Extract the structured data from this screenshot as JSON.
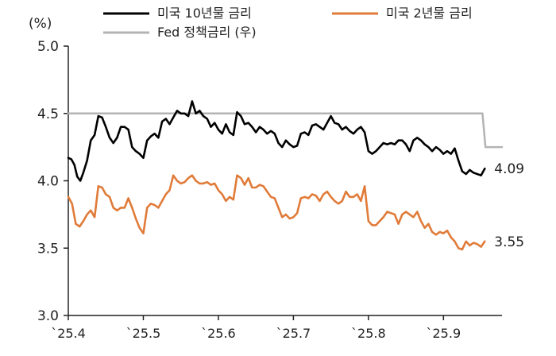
{
  "chart_data": {
    "type": "line",
    "title": "",
    "unit_label": "(%)",
    "ylim": [
      3.0,
      5.0
    ],
    "y_ticks": [
      "5.0",
      "4.5",
      "4.0",
      "3.5",
      "3.0"
    ],
    "x_ticks": [
      "`25.4",
      "`25.5",
      "`25.6",
      "`25.7",
      "`25.8",
      "`25.9"
    ],
    "x_tick_values": [
      2025.4,
      2025.5,
      2025.6,
      2025.7,
      2025.8,
      2025.9
    ],
    "xlim": [
      2025.4,
      2025.978
    ],
    "legend_placement": "top",
    "grid": false,
    "series": [
      {
        "key": "us10y",
        "name": "미국 10년물 금리",
        "color": "#000000",
        "end_label": "4.09",
        "points": [
          [
            2025.4,
            4.17
          ],
          [
            2025.404,
            4.16
          ],
          [
            2025.408,
            4.12
          ],
          [
            2025.412,
            4.03
          ],
          [
            2025.416,
            4.0
          ],
          [
            2025.42,
            4.06
          ],
          [
            2025.425,
            4.15
          ],
          [
            2025.43,
            4.3
          ],
          [
            2025.435,
            4.34
          ],
          [
            2025.44,
            4.48
          ],
          [
            2025.445,
            4.47
          ],
          [
            2025.45,
            4.4
          ],
          [
            2025.455,
            4.32
          ],
          [
            2025.46,
            4.28
          ],
          [
            2025.465,
            4.32
          ],
          [
            2025.47,
            4.4
          ],
          [
            2025.475,
            4.4
          ],
          [
            2025.48,
            4.38
          ],
          [
            2025.485,
            4.25
          ],
          [
            2025.49,
            4.22
          ],
          [
            2025.495,
            4.2
          ],
          [
            2025.5,
            4.17
          ],
          [
            2025.505,
            4.3
          ],
          [
            2025.51,
            4.33
          ],
          [
            2025.515,
            4.35
          ],
          [
            2025.52,
            4.32
          ],
          [
            2025.525,
            4.44
          ],
          [
            2025.53,
            4.46
          ],
          [
            2025.535,
            4.42
          ],
          [
            2025.54,
            4.47
          ],
          [
            2025.545,
            4.52
          ],
          [
            2025.55,
            4.5
          ],
          [
            2025.555,
            4.5
          ],
          [
            2025.56,
            4.48
          ],
          [
            2025.565,
            4.59
          ],
          [
            2025.57,
            4.5
          ],
          [
            2025.575,
            4.52
          ],
          [
            2025.58,
            4.48
          ],
          [
            2025.585,
            4.46
          ],
          [
            2025.59,
            4.4
          ],
          [
            2025.595,
            4.43
          ],
          [
            2025.6,
            4.38
          ],
          [
            2025.605,
            4.35
          ],
          [
            2025.61,
            4.42
          ],
          [
            2025.615,
            4.36
          ],
          [
            2025.62,
            4.34
          ],
          [
            2025.625,
            4.51
          ],
          [
            2025.63,
            4.48
          ],
          [
            2025.635,
            4.42
          ],
          [
            2025.64,
            4.43
          ],
          [
            2025.645,
            4.4
          ],
          [
            2025.65,
            4.36
          ],
          [
            2025.655,
            4.4
          ],
          [
            2025.66,
            4.38
          ],
          [
            2025.665,
            4.35
          ],
          [
            2025.67,
            4.37
          ],
          [
            2025.675,
            4.35
          ],
          [
            2025.68,
            4.28
          ],
          [
            2025.685,
            4.25
          ],
          [
            2025.69,
            4.3
          ],
          [
            2025.695,
            4.27
          ],
          [
            2025.7,
            4.25
          ],
          [
            2025.705,
            4.26
          ],
          [
            2025.71,
            4.35
          ],
          [
            2025.715,
            4.36
          ],
          [
            2025.72,
            4.34
          ],
          [
            2025.725,
            4.41
          ],
          [
            2025.73,
            4.42
          ],
          [
            2025.735,
            4.4
          ],
          [
            2025.74,
            4.38
          ],
          [
            2025.745,
            4.43
          ],
          [
            2025.75,
            4.48
          ],
          [
            2025.755,
            4.43
          ],
          [
            2025.76,
            4.42
          ],
          [
            2025.765,
            4.38
          ],
          [
            2025.77,
            4.4
          ],
          [
            2025.775,
            4.37
          ],
          [
            2025.78,
            4.35
          ],
          [
            2025.785,
            4.38
          ],
          [
            2025.79,
            4.4
          ],
          [
            2025.795,
            4.36
          ],
          [
            2025.8,
            4.22
          ],
          [
            2025.805,
            4.2
          ],
          [
            2025.81,
            4.22
          ],
          [
            2025.815,
            4.25
          ],
          [
            2025.82,
            4.28
          ],
          [
            2025.825,
            4.27
          ],
          [
            2025.83,
            4.28
          ],
          [
            2025.835,
            4.27
          ],
          [
            2025.84,
            4.3
          ],
          [
            2025.845,
            4.3
          ],
          [
            2025.85,
            4.27
          ],
          [
            2025.855,
            4.22
          ],
          [
            2025.86,
            4.3
          ],
          [
            2025.865,
            4.32
          ],
          [
            2025.87,
            4.3
          ],
          [
            2025.875,
            4.27
          ],
          [
            2025.88,
            4.25
          ],
          [
            2025.885,
            4.22
          ],
          [
            2025.89,
            4.25
          ],
          [
            2025.895,
            4.23
          ],
          [
            2025.9,
            4.2
          ],
          [
            2025.905,
            4.22
          ],
          [
            2025.91,
            4.2
          ],
          [
            2025.915,
            4.24
          ],
          [
            2025.92,
            4.15
          ],
          [
            2025.925,
            4.07
          ],
          [
            2025.93,
            4.05
          ],
          [
            2025.935,
            4.08
          ],
          [
            2025.94,
            4.06
          ],
          [
            2025.945,
            4.05
          ],
          [
            2025.95,
            4.04
          ],
          [
            2025.955,
            4.09
          ]
        ]
      },
      {
        "key": "us2y",
        "name": "미국 2년물 금리",
        "color": "#e07b39",
        "end_label": "3.55",
        "points": [
          [
            2025.4,
            3.88
          ],
          [
            2025.405,
            3.83
          ],
          [
            2025.41,
            3.68
          ],
          [
            2025.415,
            3.66
          ],
          [
            2025.42,
            3.7
          ],
          [
            2025.425,
            3.75
          ],
          [
            2025.43,
            3.78
          ],
          [
            2025.435,
            3.73
          ],
          [
            2025.44,
            3.96
          ],
          [
            2025.445,
            3.95
          ],
          [
            2025.45,
            3.9
          ],
          [
            2025.455,
            3.88
          ],
          [
            2025.46,
            3.8
          ],
          [
            2025.465,
            3.78
          ],
          [
            2025.47,
            3.8
          ],
          [
            2025.475,
            3.8
          ],
          [
            2025.48,
            3.87
          ],
          [
            2025.485,
            3.8
          ],
          [
            2025.49,
            3.72
          ],
          [
            2025.495,
            3.65
          ],
          [
            2025.5,
            3.61
          ],
          [
            2025.505,
            3.8
          ],
          [
            2025.51,
            3.83
          ],
          [
            2025.515,
            3.82
          ],
          [
            2025.52,
            3.8
          ],
          [
            2025.525,
            3.85
          ],
          [
            2025.53,
            3.9
          ],
          [
            2025.535,
            3.93
          ],
          [
            2025.54,
            4.04
          ],
          [
            2025.545,
            4.0
          ],
          [
            2025.55,
            3.98
          ],
          [
            2025.555,
            3.99
          ],
          [
            2025.56,
            4.02
          ],
          [
            2025.565,
            4.04
          ],
          [
            2025.57,
            4.0
          ],
          [
            2025.575,
            3.98
          ],
          [
            2025.58,
            3.98
          ],
          [
            2025.585,
            3.99
          ],
          [
            2025.59,
            3.97
          ],
          [
            2025.595,
            3.98
          ],
          [
            2025.6,
            3.93
          ],
          [
            2025.605,
            3.9
          ],
          [
            2025.61,
            3.85
          ],
          [
            2025.615,
            3.88
          ],
          [
            2025.62,
            3.86
          ],
          [
            2025.625,
            4.04
          ],
          [
            2025.63,
            4.02
          ],
          [
            2025.635,
            3.97
          ],
          [
            2025.64,
            4.02
          ],
          [
            2025.645,
            3.95
          ],
          [
            2025.65,
            3.95
          ],
          [
            2025.655,
            3.97
          ],
          [
            2025.66,
            3.96
          ],
          [
            2025.665,
            3.92
          ],
          [
            2025.67,
            3.88
          ],
          [
            2025.675,
            3.87
          ],
          [
            2025.68,
            3.8
          ],
          [
            2025.685,
            3.73
          ],
          [
            2025.69,
            3.75
          ],
          [
            2025.695,
            3.72
          ],
          [
            2025.7,
            3.73
          ],
          [
            2025.705,
            3.76
          ],
          [
            2025.71,
            3.87
          ],
          [
            2025.715,
            3.88
          ],
          [
            2025.72,
            3.87
          ],
          [
            2025.725,
            3.9
          ],
          [
            2025.73,
            3.89
          ],
          [
            2025.735,
            3.85
          ],
          [
            2025.74,
            3.9
          ],
          [
            2025.745,
            3.92
          ],
          [
            2025.75,
            3.88
          ],
          [
            2025.755,
            3.85
          ],
          [
            2025.76,
            3.83
          ],
          [
            2025.765,
            3.85
          ],
          [
            2025.77,
            3.92
          ],
          [
            2025.775,
            3.88
          ],
          [
            2025.78,
            3.88
          ],
          [
            2025.785,
            3.9
          ],
          [
            2025.79,
            3.85
          ],
          [
            2025.795,
            3.96
          ],
          [
            2025.8,
            3.7
          ],
          [
            2025.805,
            3.67
          ],
          [
            2025.81,
            3.67
          ],
          [
            2025.815,
            3.7
          ],
          [
            2025.82,
            3.73
          ],
          [
            2025.825,
            3.77
          ],
          [
            2025.83,
            3.76
          ],
          [
            2025.835,
            3.75
          ],
          [
            2025.84,
            3.68
          ],
          [
            2025.845,
            3.75
          ],
          [
            2025.85,
            3.77
          ],
          [
            2025.855,
            3.75
          ],
          [
            2025.86,
            3.73
          ],
          [
            2025.865,
            3.77
          ],
          [
            2025.87,
            3.7
          ],
          [
            2025.875,
            3.65
          ],
          [
            2025.88,
            3.68
          ],
          [
            2025.885,
            3.62
          ],
          [
            2025.89,
            3.6
          ],
          [
            2025.895,
            3.62
          ],
          [
            2025.9,
            3.61
          ],
          [
            2025.905,
            3.63
          ],
          [
            2025.91,
            3.58
          ],
          [
            2025.915,
            3.55
          ],
          [
            2025.92,
            3.5
          ],
          [
            2025.925,
            3.49
          ],
          [
            2025.93,
            3.55
          ],
          [
            2025.935,
            3.52
          ],
          [
            2025.94,
            3.54
          ],
          [
            2025.945,
            3.53
          ],
          [
            2025.95,
            3.51
          ],
          [
            2025.955,
            3.55
          ]
        ]
      },
      {
        "key": "fed",
        "name": "Fed 정책금리 (우)",
        "color": "#b3b3b3",
        "end_label": "",
        "points": [
          [
            2025.4,
            4.5
          ],
          [
            2025.952,
            4.5
          ],
          [
            2025.956,
            4.25
          ],
          [
            2025.978,
            4.25
          ]
        ]
      }
    ]
  }
}
